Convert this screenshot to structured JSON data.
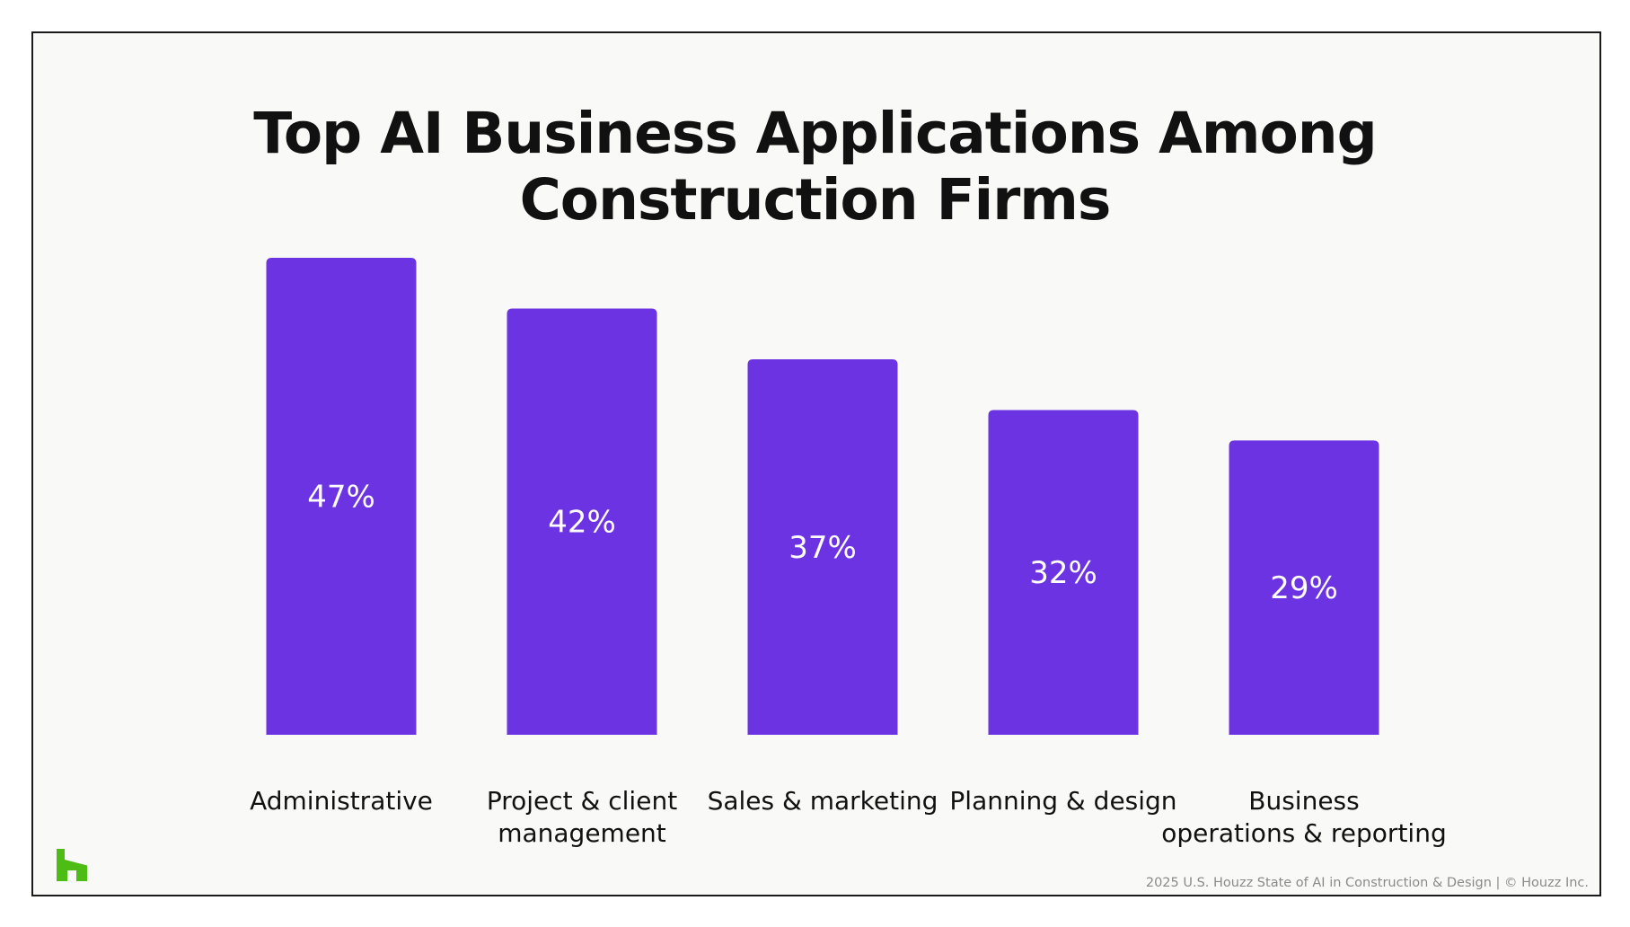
{
  "chart_data": {
    "type": "bar",
    "title_lines": [
      "Top AI Business Applications Among",
      "Construction Firms"
    ],
    "categories": [
      [
        "Administrative"
      ],
      [
        "Project & client",
        "management"
      ],
      [
        "Sales & marketing"
      ],
      [
        "Planning & design"
      ],
      [
        "Business",
        "operations & reporting"
      ]
    ],
    "values": [
      47,
      42,
      37,
      32,
      29
    ],
    "value_labels": [
      "47%",
      "42%",
      "37%",
      "32%",
      "29%"
    ],
    "unit": "%",
    "bar_color": "#6c33e3",
    "grid": false,
    "legend": "none",
    "ylim": [
      0,
      47
    ]
  },
  "brand": {
    "logo_icon": "houzz-logo",
    "logo_color": "#4dbc15"
  },
  "footer": {
    "source": "2025 U.S. Houzz State of AI in Construction & Design | © Houzz Inc."
  }
}
